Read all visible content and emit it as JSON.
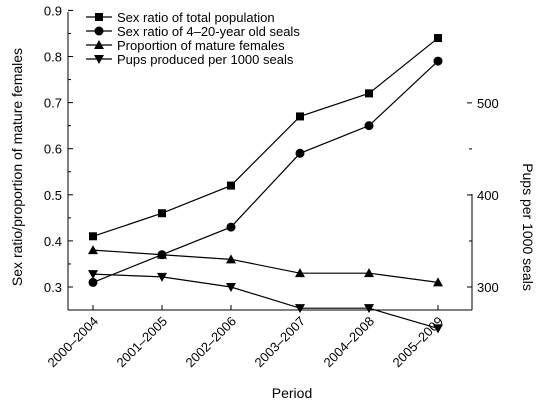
{
  "chart_data": {
    "type": "line",
    "xlabel": "Period",
    "ylabel": "Sex ratio/proportion of mature females",
    "y2label": "Pups per 1000 seals",
    "categories": [
      "2000–2004",
      "2001–2005",
      "2002–2006",
      "2003–2007",
      "2004–2008",
      "2005–2009"
    ],
    "ylim": [
      0.25,
      0.9
    ],
    "yticks": [
      "0.3",
      "0.4",
      "0.5",
      "0.6",
      "0.7",
      "0.8",
      "0.9"
    ],
    "y2lim": [
      250,
      550
    ],
    "y2ticks": [
      "300",
      "400",
      "500"
    ],
    "legend": "top-left",
    "grid": false,
    "series": [
      {
        "name": "Sex ratio of total population",
        "marker": "square",
        "axis": "left",
        "values": [
          0.41,
          0.46,
          0.52,
          0.67,
          0.72,
          0.84
        ]
      },
      {
        "name": "Sex ratio of 4–20-year old seals",
        "marker": "circle",
        "axis": "left",
        "values": [
          0.31,
          0.37,
          0.43,
          0.59,
          0.65,
          0.79
        ]
      },
      {
        "name": "Proportion of mature females",
        "marker": "triangle-up",
        "axis": "left",
        "values": [
          0.38,
          0.37,
          0.36,
          0.33,
          0.33,
          0.31
        ]
      },
      {
        "name": "Pups produced per 1000 seals",
        "marker": "triangle-down",
        "axis": "right",
        "values": [
          314,
          311,
          300,
          277,
          277,
          255
        ]
      }
    ]
  }
}
